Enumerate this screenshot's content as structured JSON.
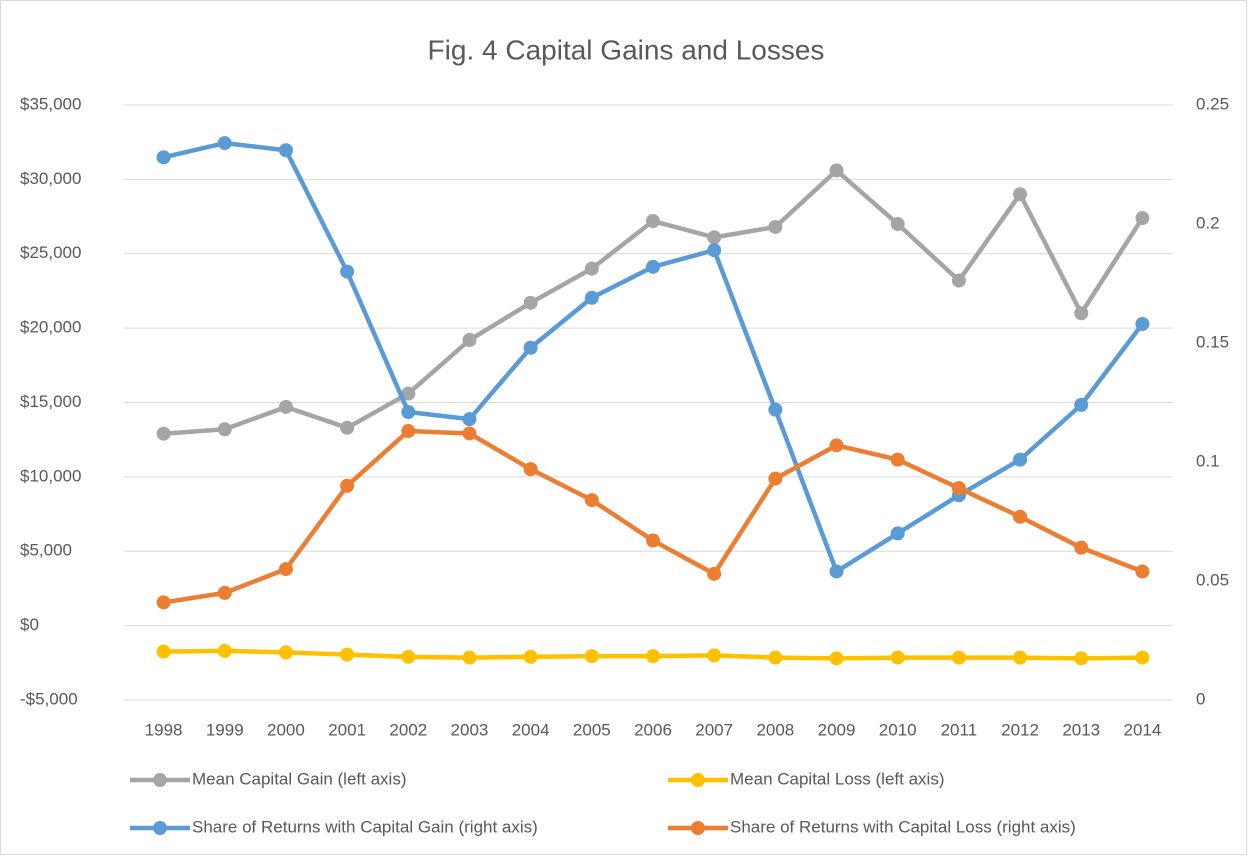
{
  "chart_data": {
    "type": "line",
    "title": "Fig. 4 Capital Gains and Losses",
    "categories": [
      "1998",
      "1999",
      "2000",
      "2001",
      "2002",
      "2003",
      "2004",
      "2005",
      "2006",
      "2007",
      "2008",
      "2009",
      "2010",
      "2011",
      "2012",
      "2013",
      "2014"
    ],
    "series": [
      {
        "name": "Mean Capital Gain (left axis)",
        "color": "#a5a5a5",
        "values": [
          12900,
          13200,
          14700,
          13300,
          15600,
          19200,
          21700,
          24000,
          27200,
          26100,
          26800,
          30600,
          27000,
          23200,
          29000,
          21000,
          27400
        ]
      },
      {
        "name": "Mean Capital Loss (left axis)",
        "color": "#ffc000",
        "values": [
          -1750,
          -1700,
          -1800,
          -1950,
          -2100,
          -2150,
          -2100,
          -2050,
          -2050,
          -2000,
          -2150,
          -2200,
          -2150,
          -2150,
          -2150,
          -2200,
          -2150
        ]
      },
      {
        "name": "Share of Returns with Capital Gain (right axis)",
        "color": "#5b9bd5",
        "axis": "y2",
        "values": [
          0.228,
          0.234,
          0.231,
          0.18,
          0.121,
          0.118,
          0.148,
          0.169,
          0.182,
          0.189,
          0.122,
          0.054,
          0.07,
          0.086,
          0.101,
          0.124,
          0.158
        ]
      },
      {
        "name": "Share of Returns with Capital Loss (right axis)",
        "color": "#ed7d31",
        "axis": "y2",
        "values": [
          0.041,
          0.045,
          0.055,
          0.09,
          0.113,
          0.112,
          0.097,
          0.084,
          0.067,
          0.053,
          0.093,
          0.107,
          0.101,
          0.089,
          0.077,
          0.064,
          0.054
        ]
      }
    ],
    "ylim": [
      -5000,
      35000
    ],
    "yticks": [
      {
        "value": -5000,
        "label": "-$5,000"
      },
      {
        "value": 0,
        "label": "$0"
      },
      {
        "value": 5000,
        "label": "$5,000"
      },
      {
        "value": 10000,
        "label": "$10,000"
      },
      {
        "value": 15000,
        "label": "$15,000"
      },
      {
        "value": 20000,
        "label": "$20,000"
      },
      {
        "value": 25000,
        "label": "$25,000"
      },
      {
        "value": 30000,
        "label": "$30,000"
      },
      {
        "value": 35000,
        "label": "$35,000"
      }
    ],
    "y2lim": [
      0,
      0.25
    ],
    "y2ticks": [
      0,
      0.05,
      0.1,
      0.15,
      0.2,
      0.25
    ],
    "grid": true
  }
}
